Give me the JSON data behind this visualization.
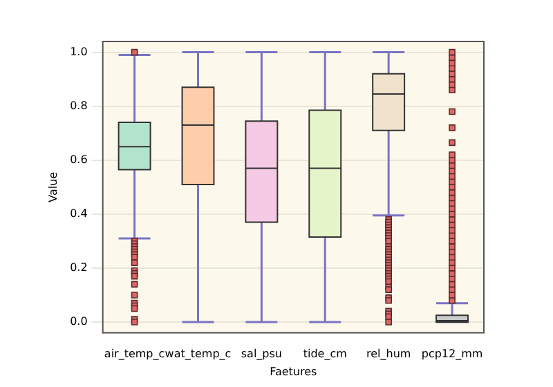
{
  "chart_data": {
    "type": "box",
    "xlabel": "Faetures",
    "ylabel": "Value",
    "categories": [
      "air_temp_c",
      "wat_temp_c",
      "sal_psu",
      "tide_cm",
      "rel_hum",
      "pcp12_mm"
    ],
    "colors": [
      "#b3e2cd",
      "#fdcdac",
      "#f4cae4",
      "#e6f5c9",
      "#f1e2cc",
      "#cccccc"
    ],
    "boxes": [
      {
        "low": 0.31,
        "q1": 0.565,
        "median": 0.65,
        "q3": 0.74,
        "high": 0.99,
        "outliers": [
          1.0,
          0.3,
          0.29,
          0.28,
          0.27,
          0.26,
          0.25,
          0.24,
          0.22,
          0.19,
          0.18,
          0.17,
          0.14,
          0.1,
          0.07,
          0.06,
          0.05,
          0.01,
          0.0
        ]
      },
      {
        "low": 0,
        "q1": 0.51,
        "median": 0.73,
        "q3": 0.87,
        "high": 1.0
      },
      {
        "low": 0,
        "q1": 0.37,
        "median": 0.57,
        "q3": 0.745,
        "high": 1.0
      },
      {
        "low": 0,
        "q1": 0.315,
        "median": 0.57,
        "q3": 0.785,
        "high": 1.0
      },
      {
        "low": 0.395,
        "q1": 0.71,
        "median": 0.845,
        "q3": 0.92,
        "high": 1.0,
        "outliers": [
          0.38,
          0.37,
          0.36,
          0.35,
          0.34,
          0.33,
          0.32,
          0.31,
          0.3,
          0.28,
          0.27,
          0.26,
          0.25,
          0.24,
          0.23,
          0.22,
          0.21,
          0.2,
          0.19,
          0.18,
          0.17,
          0.16,
          0.15,
          0.13,
          0.12,
          0.09,
          0.08,
          0.04,
          0.03,
          0.02,
          0.0
        ]
      },
      {
        "low": 0,
        "q1": 0,
        "median": 0.005,
        "q3": 0.025,
        "high": 0.07,
        "outliers": [
          0.08,
          0.1,
          0.12,
          0.14,
          0.16,
          0.18,
          0.2,
          0.22,
          0.24,
          0.26,
          0.28,
          0.3,
          0.32,
          0.34,
          0.36,
          0.38,
          0.4,
          0.42,
          0.44,
          0.46,
          0.48,
          0.5,
          0.52,
          0.54,
          0.56,
          0.58,
          0.6,
          0.62,
          0.665,
          0.72,
          0.78,
          0.86,
          0.88,
          0.9,
          0.92,
          0.94,
          0.96,
          0.98,
          1.0
        ]
      }
    ],
    "ylim": [
      -0.04,
      1.04
    ],
    "yticks": [
      {
        "value": 0,
        "label": "0.0"
      },
      {
        "value": 0.2,
        "label": "0.2"
      },
      {
        "value": 0.4,
        "label": "0.4"
      },
      {
        "value": 0.6,
        "label": "0.6"
      },
      {
        "value": 0.8,
        "label": "0.8"
      },
      {
        "value": 1,
        "label": "1.0"
      }
    ],
    "grid": "y",
    "legend": false,
    "marker": "square"
  }
}
